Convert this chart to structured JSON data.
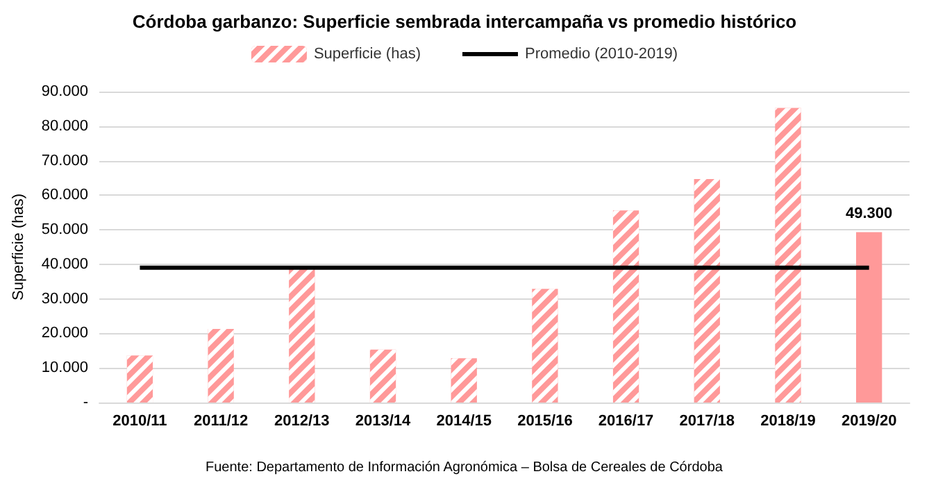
{
  "chart_data": {
    "type": "bar",
    "title": "Córdoba garbanzo: Superficie sembrada intercampaña vs promedio histórico",
    "ylabel": "Superficie (has)",
    "categories": [
      "2010/11",
      "2011/12",
      "2012/13",
      "2013/14",
      "2014/15",
      "2015/16",
      "2016/17",
      "2017/18",
      "2018/19",
      "2019/20"
    ],
    "series": [
      {
        "name": "Superficie (has)",
        "color": "#ff9999",
        "values": [
          13600,
          21300,
          38600,
          15300,
          12800,
          32900,
          55600,
          64700,
          85300,
          49300
        ],
        "value_labels": [
          null,
          null,
          null,
          null,
          null,
          null,
          null,
          null,
          null,
          "49.300"
        ]
      },
      {
        "name": "Promedio (2010-2019)",
        "type": "line",
        "color": "#000000",
        "values": [
          39000,
          39000,
          39000,
          39000,
          39000,
          39000,
          39000,
          39000,
          39000,
          39000
        ]
      }
    ],
    "ylim": [
      0,
      90000
    ],
    "yticks": [
      {
        "value": 0,
        "label": "-"
      },
      {
        "value": 10000,
        "label": "10.000"
      },
      {
        "value": 20000,
        "label": "20.000"
      },
      {
        "value": 30000,
        "label": "30.000"
      },
      {
        "value": 40000,
        "label": "40.000"
      },
      {
        "value": 50000,
        "label": "50.000"
      },
      {
        "value": 60000,
        "label": "60.000"
      },
      {
        "value": 70000,
        "label": "70.000"
      },
      {
        "value": 80000,
        "label": "80.000"
      },
      {
        "value": 90000,
        "label": "90.000"
      }
    ],
    "grid": "y",
    "legend": "top",
    "marker": "none",
    "annotations": [
      "Fuente: Departamento de Información Agronómica – Bolsa de Cereales de Córdoba"
    ]
  }
}
